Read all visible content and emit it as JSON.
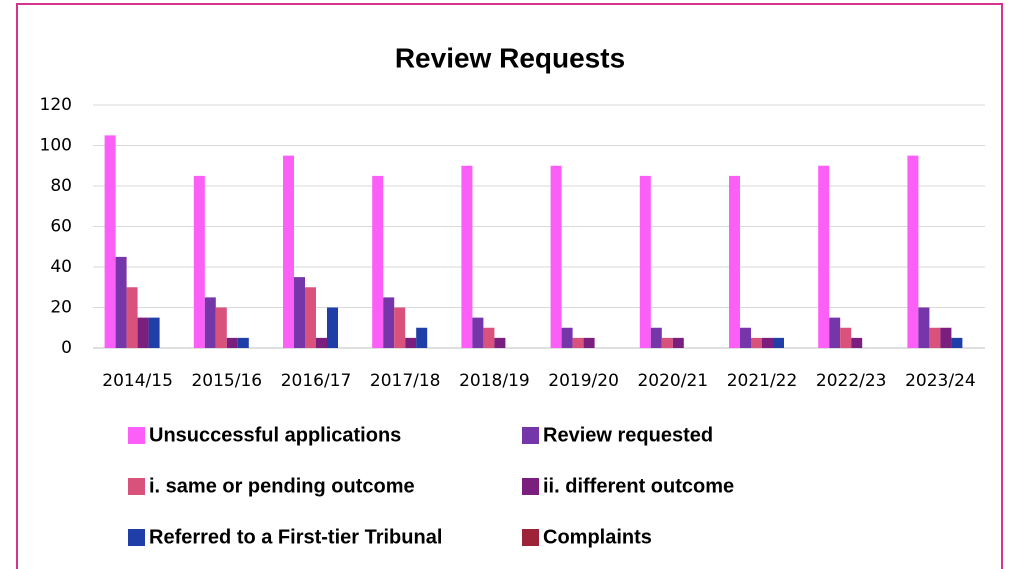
{
  "chart_data": {
    "type": "bar",
    "title": "Review Requests",
    "categories": [
      "2014/15",
      "2015/16",
      "2016/17",
      "2017/18",
      "2018/19",
      "2019/20",
      "2020/21",
      "2021/22",
      "2022/23",
      "2023/24"
    ],
    "series": [
      {
        "name": "Unsuccessful applications",
        "color": "#fb5ff7",
        "values": [
          105,
          85,
          95,
          85,
          90,
          90,
          85,
          85,
          90,
          95
        ]
      },
      {
        "name": "Review requested",
        "color": "#7436a8",
        "values": [
          45,
          25,
          35,
          25,
          15,
          10,
          10,
          10,
          15,
          20
        ]
      },
      {
        "name": "i. same or pending outcome",
        "color": "#d9527c",
        "values": [
          30,
          20,
          30,
          20,
          10,
          5,
          5,
          5,
          10,
          10
        ]
      },
      {
        "name": "ii. different outcome",
        "color": "#7b1f7e",
        "values": [
          15,
          5,
          5,
          5,
          5,
          5,
          5,
          5,
          5,
          10
        ]
      },
      {
        "name": "Referred to a First-tier Tribunal",
        "color": "#1f3ea8",
        "values": [
          15,
          5,
          20,
          10,
          0,
          0,
          0,
          5,
          0,
          5
        ]
      },
      {
        "name": "Complaints",
        "color": "#9c2338",
        "values": [
          0,
          0,
          0,
          0,
          0,
          0,
          0,
          0,
          0,
          0
        ]
      }
    ],
    "ylim": [
      0,
      120
    ],
    "yticks": [
      0,
      20,
      40,
      60,
      80,
      100,
      120
    ],
    "grid": true,
    "legend": "bottom"
  }
}
